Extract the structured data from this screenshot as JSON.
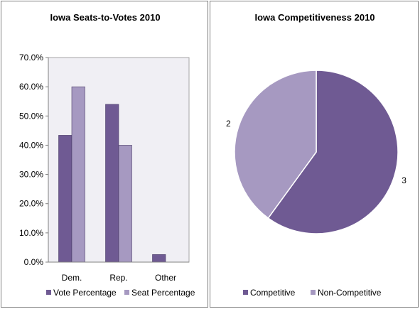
{
  "chart_data": [
    {
      "type": "bar",
      "title": "Iowa Seats-to-Votes 2010",
      "categories": [
        "Dem.",
        "Rep.",
        "Other"
      ],
      "series": [
        {
          "name": "Vote Percentage",
          "values": [
            43.4,
            54.0,
            2.6
          ],
          "color": "#6f5a93"
        },
        {
          "name": "Seat Percentage",
          "values": [
            60.0,
            40.0,
            0.0
          ],
          "color": "#a699c1"
        }
      ],
      "ylim": [
        0,
        70
      ],
      "yticks": [
        "0.0%",
        "10.0%",
        "20.0%",
        "30.0%",
        "40.0%",
        "50.0%",
        "60.0%",
        "70.0%"
      ],
      "plot_background": "#f0eff4",
      "legend_position": "bottom"
    },
    {
      "type": "pie",
      "title": "Iowa Competitiveness 2010",
      "slices": [
        {
          "name": "Competitive",
          "value": 3,
          "label": "3",
          "color": "#6f5a93"
        },
        {
          "name": "Non-Competitive",
          "value": 2,
          "label": "2",
          "color": "#a699c1"
        }
      ],
      "legend_position": "bottom"
    }
  ]
}
